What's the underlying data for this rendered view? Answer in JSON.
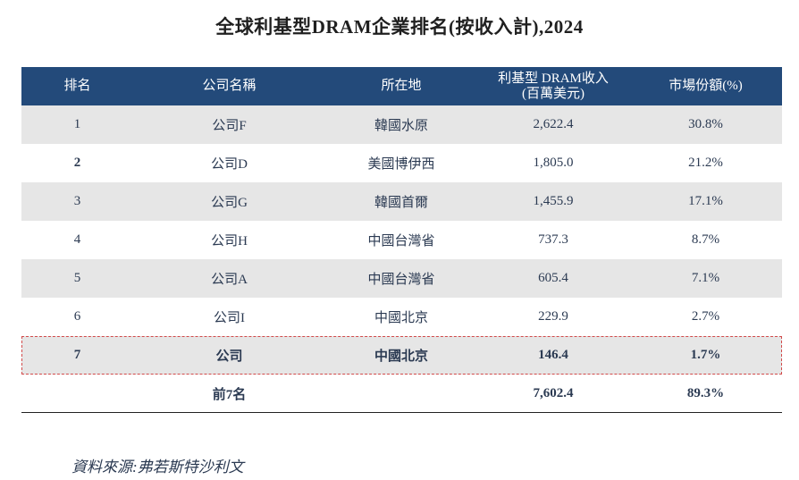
{
  "title": "全球利基型DRAM企業排名(按收入計),2024",
  "table": {
    "headers": [
      "排名",
      "公司名稱",
      "所在地",
      "利基型 DRAM收入",
      "(百萬美元)",
      "市場份額(%)"
    ],
    "rows": [
      {
        "rank": "1",
        "company": "公司F",
        "location": "韓國水原",
        "revenue": "2,622.4",
        "share": "30.8%"
      },
      {
        "rank": "2",
        "company": "公司D",
        "location": "美國博伊西",
        "revenue": "1,805.0",
        "share": "21.2%"
      },
      {
        "rank": "3",
        "company": "公司G",
        "location": "韓國首爾",
        "revenue": "1,455.9",
        "share": "17.1%"
      },
      {
        "rank": "4",
        "company": "公司H",
        "location": "中國台灣省",
        "revenue": "737.3",
        "share": "8.7%"
      },
      {
        "rank": "5",
        "company": "公司A",
        "location": "中國台灣省",
        "revenue": "605.4",
        "share": "7.1%"
      },
      {
        "rank": "6",
        "company": "公司I",
        "location": "中國北京",
        "revenue": "229.9",
        "share": "2.7%"
      },
      {
        "rank": "7",
        "company": "公司",
        "location": "中國北京",
        "revenue": "146.4",
        "share": "1.7%"
      }
    ],
    "total": {
      "label": "前7名",
      "revenue": "7,602.4",
      "share": "89.3%"
    }
  },
  "source": "資料來源:弗若斯特沙利文",
  "colors": {
    "header_bg": "#234a7a",
    "row_shade": "#e6e6e6",
    "highlight_border": "#d24a4a",
    "text": "#2b3a52"
  }
}
